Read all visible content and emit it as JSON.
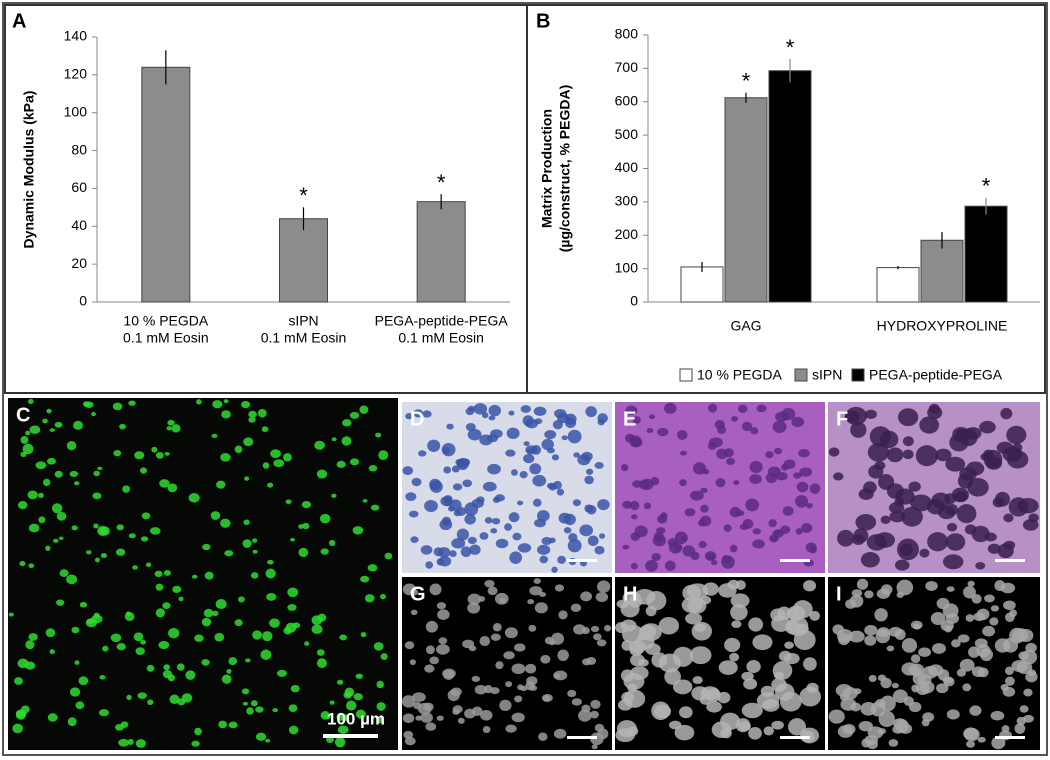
{
  "chart_data": [
    {
      "type": "bar",
      "panel_label": "A",
      "ylabel": "Dynamic Modulus (kPa)",
      "categories": [
        [
          "10 % PEGDA",
          "0.1 mM Eosin"
        ],
        [
          "sIPN",
          "0.1 mM Eosin"
        ],
        [
          "PEGA-peptide-PEGA",
          "0.1 mM Eosin"
        ]
      ],
      "values": [
        124,
        44,
        53
      ],
      "errors": [
        9,
        6,
        4
      ],
      "significance": [
        null,
        "*",
        "*"
      ],
      "color": "#8c8c8c",
      "ylim": [
        0,
        140
      ],
      "yticks": [
        0,
        20,
        40,
        60,
        80,
        100,
        120,
        140
      ]
    },
    {
      "type": "bar",
      "panel_label": "B",
      "ylabel": [
        "Matrix Production",
        "(µg/construct, % PEGDA)"
      ],
      "categories": [
        "GAG",
        "HYDROXYPROLINE"
      ],
      "series": [
        {
          "name": "10 % PEGDA",
          "color": "#ffffff",
          "values": [
            105,
            103
          ],
          "errors": [
            15,
            5
          ],
          "significance": [
            null,
            null
          ]
        },
        {
          "name": "sIPN",
          "color": "#8c8c8c",
          "values": [
            612,
            185
          ],
          "errors": [
            15,
            25
          ],
          "significance": [
            "*",
            null
          ]
        },
        {
          "name": "PEGA-peptide-PEGA",
          "color": "#000000",
          "values": [
            693,
            287
          ],
          "errors": [
            35,
            25
          ],
          "significance": [
            "*",
            "*"
          ]
        }
      ],
      "legend": "bottom",
      "ylim": [
        0,
        800
      ],
      "yticks": [
        0,
        100,
        200,
        300,
        400,
        500,
        600,
        700,
        800
      ]
    }
  ],
  "image_panels": [
    {
      "panel_label": "C",
      "scale_bar": "100 µm"
    },
    {
      "panel_label": "D"
    },
    {
      "panel_label": "E"
    },
    {
      "panel_label": "F"
    },
    {
      "panel_label": "G"
    },
    {
      "panel_label": "H"
    },
    {
      "panel_label": "I"
    }
  ]
}
